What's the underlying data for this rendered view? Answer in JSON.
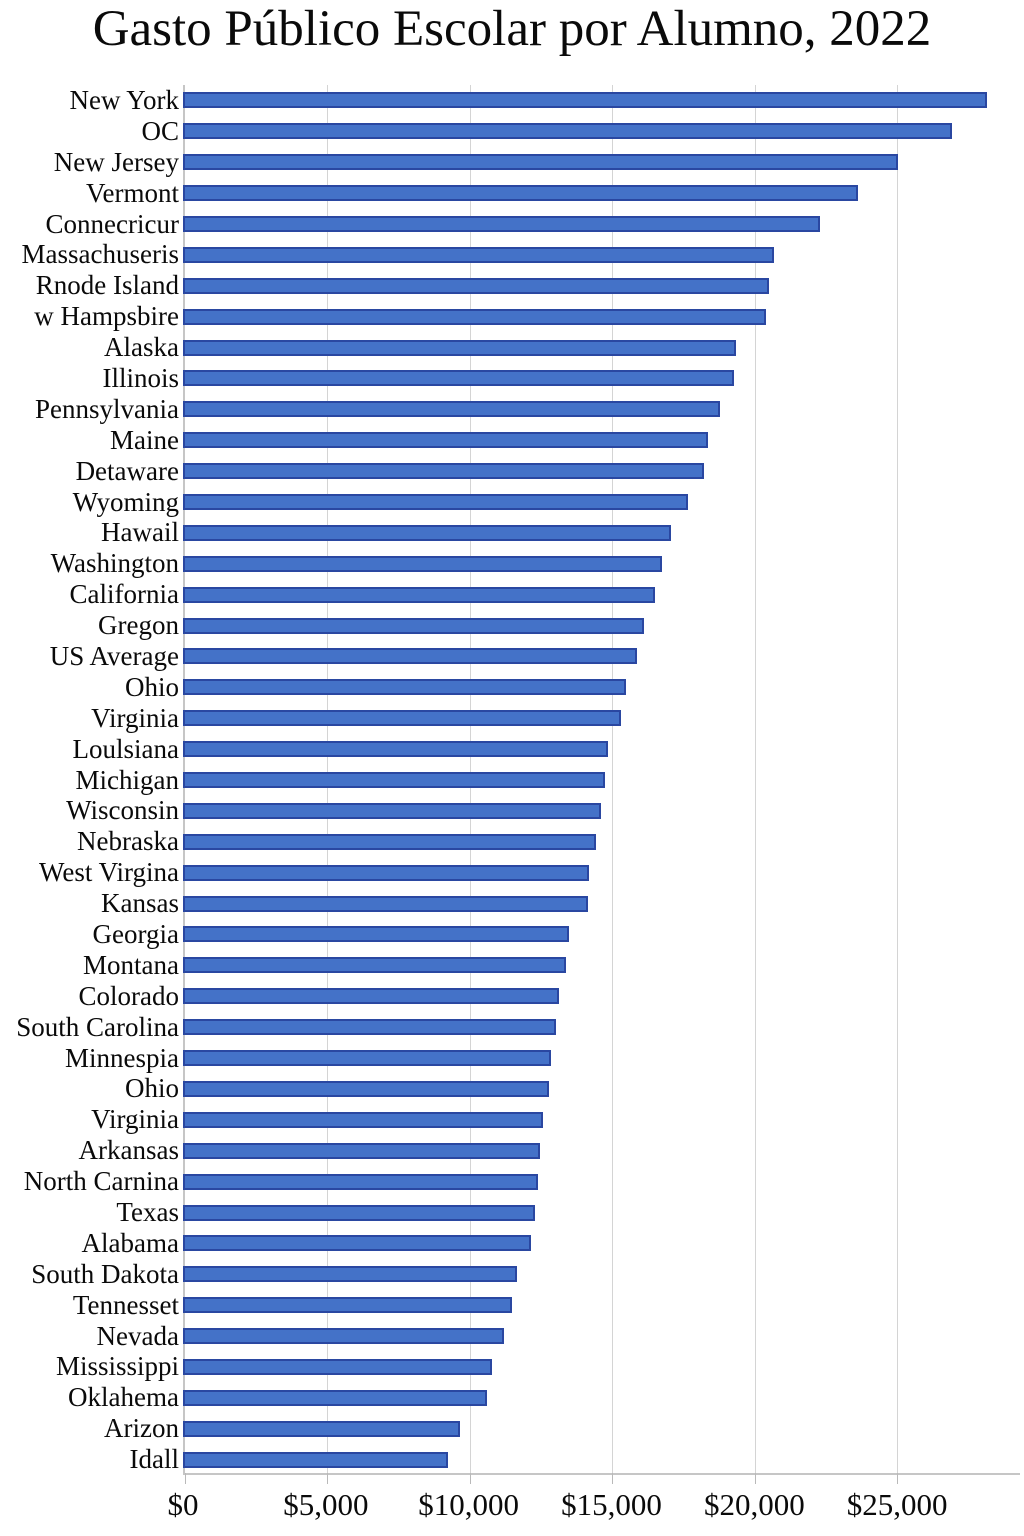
{
  "title": "Gasto Público Escolar por Alumno, 2022",
  "colors": {
    "bar_fill": "#4472c8",
    "bar_border": "#2a47a1",
    "gridline": "#d4d4d4",
    "axis_line": "#c6c6c6",
    "text": "#0a0a0a"
  },
  "chart_data": {
    "type": "bar",
    "orientation": "horizontal",
    "title": "Gasto Público Escolar por Alumno, 2022",
    "xlabel": "",
    "ylabel": "",
    "xlim": [
      0,
      29300
    ],
    "grid": "vertical",
    "legend": "none",
    "x_ticks": [
      {
        "value": 0,
        "label": "$0"
      },
      {
        "value": 5000,
        "label": "$5,000"
      },
      {
        "value": 10000,
        "label": "$10,000"
      },
      {
        "value": 15000,
        "label": "$15,000"
      },
      {
        "value": 20000,
        "label": "$20,000"
      },
      {
        "value": 25000,
        "label": "$25,000"
      }
    ],
    "categories": [
      "New York",
      "OC",
      "New Jersey",
      "Vermont",
      "Connecricur",
      "Massachuseris",
      "Rnode Island",
      "w Hampsbire",
      "Alaska",
      "Illinois",
      "Pennsylvania",
      "Maine",
      "Detaware",
      "Wyoming",
      "Hawail",
      "Washington",
      "California",
      "Gregon",
      "US Average",
      "Ohio",
      "Virginia",
      "Loulsiana",
      "Michigan",
      "Wisconsin",
      "Nebraska",
      "West Virgina",
      "Kansas",
      "Georgia",
      "Montana",
      "Colorado",
      "South Carolina",
      "Minnespia",
      "Ohio",
      "Virginia",
      "Arkansas",
      "North Carnina",
      "Texas",
      "Alabama",
      "South Dakota",
      "Tennesset",
      "Nevada",
      "Mississippi",
      "Oklahema",
      "Arizon",
      "Idall"
    ],
    "values": [
      28000,
      26800,
      24900,
      23500,
      22200,
      20600,
      20400,
      20300,
      19250,
      19200,
      18700,
      18300,
      18150,
      17600,
      17000,
      16700,
      16450,
      16050,
      15800,
      15450,
      15250,
      14800,
      14700,
      14550,
      14400,
      14150,
      14100,
      13450,
      13350,
      13100,
      12980,
      12830,
      12760,
      12550,
      12450,
      12380,
      12270,
      12130,
      11650,
      11470,
      11190,
      10770,
      10590,
      9650,
      9230
    ]
  }
}
